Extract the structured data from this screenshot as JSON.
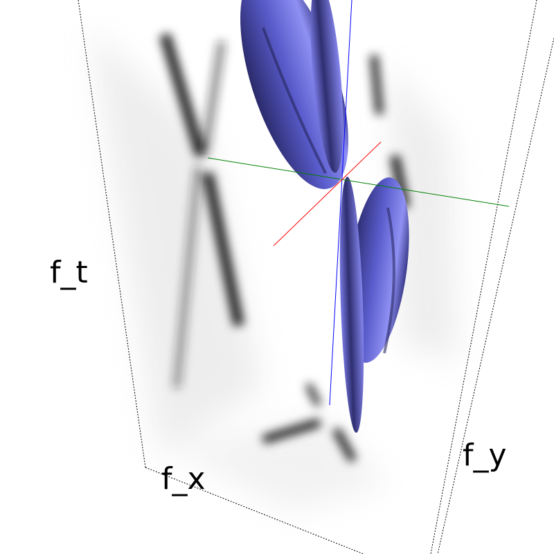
{
  "axis_labels": {
    "t": "f_t",
    "x": "f_x",
    "y": "f_y"
  }
}
